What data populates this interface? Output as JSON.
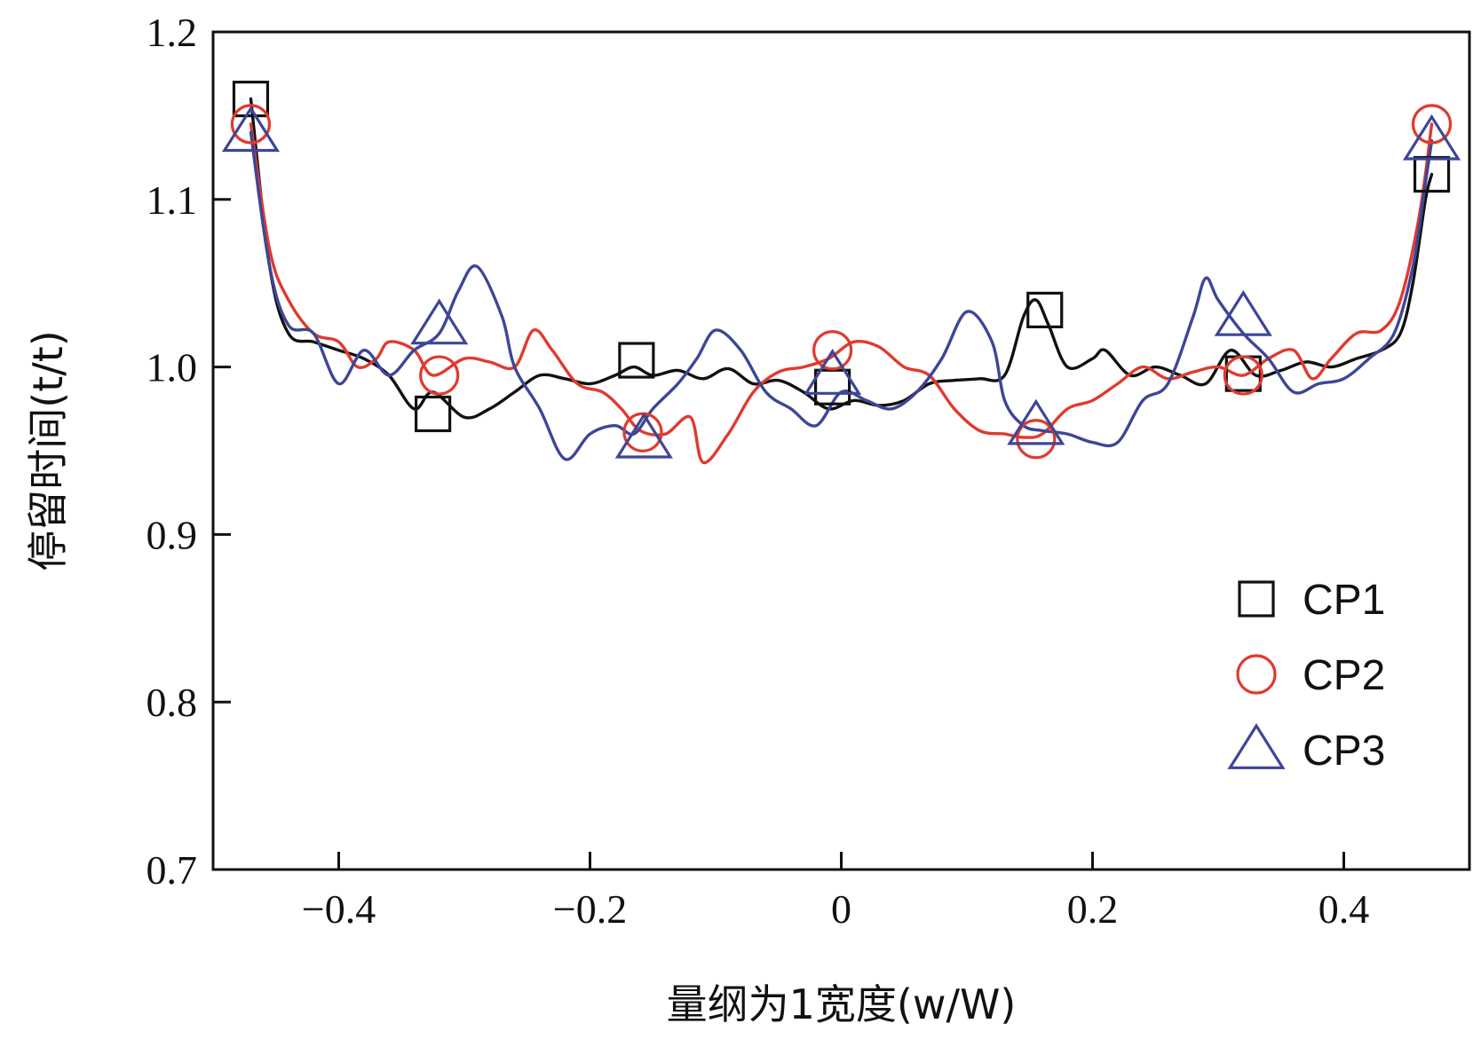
{
  "chart_data": {
    "type": "line",
    "xlabel": "量纲为1宽度(w/W)",
    "ylabel": "停留时间(t/t)",
    "xlim": [
      -0.5,
      0.5
    ],
    "ylim": [
      0.7,
      1.2
    ],
    "xticks": [
      {
        "value": -0.4,
        "label": "−0.4"
      },
      {
        "value": -0.2,
        "label": "−0.2"
      },
      {
        "value": 0,
        "label": "0"
      },
      {
        "value": 0.2,
        "label": "0.2"
      },
      {
        "value": 0.4,
        "label": "0.4"
      }
    ],
    "yticks": [
      {
        "value": 0.7,
        "label": "0.7"
      },
      {
        "value": 0.8,
        "label": "0.8"
      },
      {
        "value": 0.9,
        "label": "0.9"
      },
      {
        "value": 1.0,
        "label": "1.0"
      },
      {
        "value": 1.1,
        "label": "1.1"
      },
      {
        "value": 1.2,
        "label": "1.2"
      }
    ],
    "grid": false,
    "legend_position": "lower-right",
    "series": [
      {
        "name": "CP1",
        "color": "#111111",
        "marker": "square",
        "curve": [
          [
            -0.47,
            1.16
          ],
          [
            -0.455,
            1.06
          ],
          [
            -0.44,
            1.02
          ],
          [
            -0.42,
            1.015
          ],
          [
            -0.4,
            1.01
          ],
          [
            -0.38,
            1.005
          ],
          [
            -0.36,
            0.995
          ],
          [
            -0.34,
            0.975
          ],
          [
            -0.325,
            0.985
          ],
          [
            -0.3,
            0.97
          ],
          [
            -0.28,
            0.975
          ],
          [
            -0.26,
            0.985
          ],
          [
            -0.24,
            0.995
          ],
          [
            -0.22,
            0.993
          ],
          [
            -0.2,
            0.99
          ],
          [
            -0.18,
            0.995
          ],
          [
            -0.165,
            1.0
          ],
          [
            -0.15,
            0.995
          ],
          [
            -0.13,
            0.998
          ],
          [
            -0.11,
            0.993
          ],
          [
            -0.09,
            0.999
          ],
          [
            -0.07,
            0.99
          ],
          [
            -0.05,
            0.992
          ],
          [
            -0.03,
            0.985
          ],
          [
            -0.01,
            0.975
          ],
          [
            0.01,
            0.98
          ],
          [
            0.03,
            0.977
          ],
          [
            0.05,
            0.98
          ],
          [
            0.07,
            0.99
          ],
          [
            0.09,
            0.992
          ],
          [
            0.11,
            0.993
          ],
          [
            0.13,
            0.995
          ],
          [
            0.145,
            1.03
          ],
          [
            0.155,
            1.04
          ],
          [
            0.165,
            1.025
          ],
          [
            0.18,
            1.0
          ],
          [
            0.2,
            1.005
          ],
          [
            0.21,
            1.01
          ],
          [
            0.23,
            0.995
          ],
          [
            0.25,
            1.0
          ],
          [
            0.27,
            0.995
          ],
          [
            0.29,
            0.99
          ],
          [
            0.31,
            1.01
          ],
          [
            0.33,
            0.995
          ],
          [
            0.35,
            0.998
          ],
          [
            0.37,
            1.003
          ],
          [
            0.39,
            1.0
          ],
          [
            0.41,
            1.005
          ],
          [
            0.43,
            1.01
          ],
          [
            0.445,
            1.02
          ],
          [
            0.455,
            1.05
          ],
          [
            0.465,
            1.1
          ],
          [
            0.47,
            1.115
          ]
        ],
        "markers": [
          [
            -0.47,
            1.16
          ],
          [
            -0.325,
            0.972
          ],
          [
            -0.163,
            1.004
          ],
          [
            -0.007,
            0.988
          ],
          [
            0.162,
            1.034
          ],
          [
            0.32,
            0.996
          ],
          [
            0.47,
            1.115
          ]
        ]
      },
      {
        "name": "CP2",
        "color": "#e03a2f",
        "marker": "circle",
        "curve": [
          [
            -0.47,
            1.145
          ],
          [
            -0.455,
            1.07
          ],
          [
            -0.44,
            1.04
          ],
          [
            -0.42,
            1.02
          ],
          [
            -0.4,
            1.015
          ],
          [
            -0.385,
            1.0
          ],
          [
            -0.37,
            1.005
          ],
          [
            -0.36,
            1.015
          ],
          [
            -0.34,
            1.01
          ],
          [
            -0.325,
            0.995
          ],
          [
            -0.3,
            1.005
          ],
          [
            -0.28,
            1.003
          ],
          [
            -0.26,
            1.0
          ],
          [
            -0.245,
            1.022
          ],
          [
            -0.23,
            1.01
          ],
          [
            -0.21,
            0.99
          ],
          [
            -0.19,
            0.985
          ],
          [
            -0.175,
            0.975
          ],
          [
            -0.16,
            0.962
          ],
          [
            -0.14,
            0.96
          ],
          [
            -0.12,
            0.97
          ],
          [
            -0.11,
            0.943
          ],
          [
            -0.09,
            0.96
          ],
          [
            -0.07,
            0.985
          ],
          [
            -0.05,
            0.997
          ],
          [
            -0.03,
            1.0
          ],
          [
            -0.01,
            1.005
          ],
          [
            0.01,
            1.015
          ],
          [
            0.03,
            1.012
          ],
          [
            0.05,
            1.0
          ],
          [
            0.07,
            0.995
          ],
          [
            0.09,
            0.975
          ],
          [
            0.11,
            0.962
          ],
          [
            0.13,
            0.96
          ],
          [
            0.145,
            0.958
          ],
          [
            0.16,
            0.96
          ],
          [
            0.18,
            0.975
          ],
          [
            0.2,
            0.98
          ],
          [
            0.22,
            0.99
          ],
          [
            0.24,
            1.0
          ],
          [
            0.26,
            0.993
          ],
          [
            0.28,
            0.997
          ],
          [
            0.3,
            1.0
          ],
          [
            0.32,
            0.995
          ],
          [
            0.34,
            1.005
          ],
          [
            0.36,
            1.01
          ],
          [
            0.375,
            0.993
          ],
          [
            0.39,
            1.005
          ],
          [
            0.41,
            1.02
          ],
          [
            0.43,
            1.022
          ],
          [
            0.445,
            1.04
          ],
          [
            0.46,
            1.09
          ],
          [
            0.47,
            1.145
          ]
        ],
        "markers": [
          [
            -0.47,
            1.145
          ],
          [
            -0.32,
            0.995
          ],
          [
            -0.158,
            0.961
          ],
          [
            -0.007,
            1.01
          ],
          [
            0.155,
            0.957
          ],
          [
            0.32,
            0.995
          ],
          [
            0.47,
            1.145
          ]
        ]
      },
      {
        "name": "CP3",
        "color": "#3d4696",
        "marker": "triangle",
        "curve": [
          [
            -0.47,
            1.14
          ],
          [
            -0.455,
            1.06
          ],
          [
            -0.44,
            1.025
          ],
          [
            -0.42,
            1.02
          ],
          [
            -0.4,
            0.99
          ],
          [
            -0.38,
            1.01
          ],
          [
            -0.36,
            0.995
          ],
          [
            -0.34,
            1.01
          ],
          [
            -0.32,
            1.02
          ],
          [
            -0.305,
            1.045
          ],
          [
            -0.29,
            1.06
          ],
          [
            -0.27,
            1.03
          ],
          [
            -0.26,
            1.0
          ],
          [
            -0.24,
            0.975
          ],
          [
            -0.22,
            0.945
          ],
          [
            -0.2,
            0.96
          ],
          [
            -0.18,
            0.965
          ],
          [
            -0.165,
            0.96
          ],
          [
            -0.15,
            0.975
          ],
          [
            -0.13,
            0.99
          ],
          [
            -0.115,
            1.005
          ],
          [
            -0.1,
            1.022
          ],
          [
            -0.08,
            1.01
          ],
          [
            -0.06,
            0.985
          ],
          [
            -0.04,
            0.975
          ],
          [
            -0.02,
            0.965
          ],
          [
            0.0,
            0.985
          ],
          [
            0.02,
            0.98
          ],
          [
            0.04,
            0.975
          ],
          [
            0.06,
            0.985
          ],
          [
            0.08,
            1.005
          ],
          [
            0.1,
            1.033
          ],
          [
            0.12,
            1.015
          ],
          [
            0.13,
            0.98
          ],
          [
            0.145,
            0.965
          ],
          [
            0.16,
            0.962
          ],
          [
            0.18,
            0.96
          ],
          [
            0.2,
            0.955
          ],
          [
            0.22,
            0.955
          ],
          [
            0.24,
            0.98
          ],
          [
            0.26,
            0.99
          ],
          [
            0.28,
            1.03
          ],
          [
            0.29,
            1.053
          ],
          [
            0.3,
            1.04
          ],
          [
            0.32,
            1.02
          ],
          [
            0.34,
            1.005
          ],
          [
            0.36,
            0.985
          ],
          [
            0.38,
            0.99
          ],
          [
            0.4,
            0.993
          ],
          [
            0.42,
            1.005
          ],
          [
            0.44,
            1.02
          ],
          [
            0.455,
            1.06
          ],
          [
            0.465,
            1.11
          ],
          [
            0.47,
            1.135
          ]
        ],
        "markers": [
          [
            -0.47,
            1.14
          ],
          [
            -0.32,
            1.025
          ],
          [
            -0.157,
            0.957
          ],
          [
            -0.007,
            0.995
          ],
          [
            0.155,
            0.965
          ],
          [
            0.32,
            1.03
          ],
          [
            0.47,
            1.135
          ]
        ]
      }
    ]
  }
}
